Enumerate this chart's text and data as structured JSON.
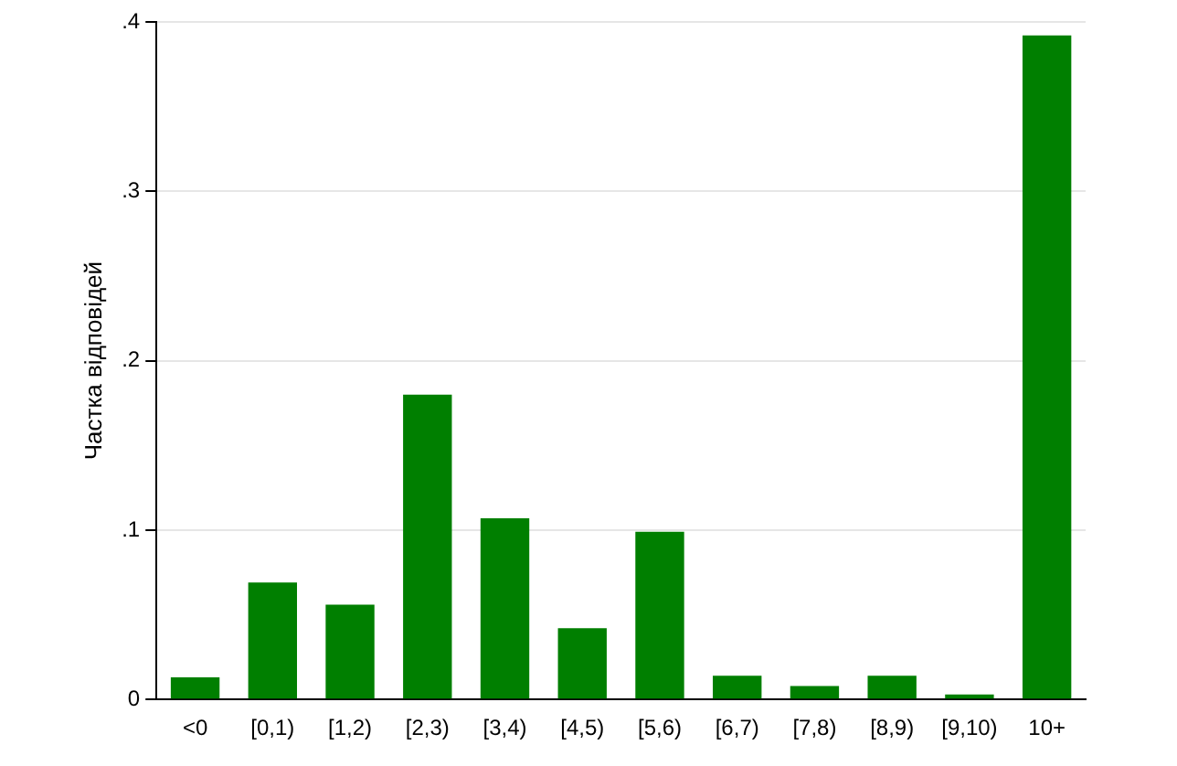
{
  "chart_data": {
    "type": "bar",
    "ylabel": "Частка відповідей",
    "categories": [
      "<0",
      "[0,1)",
      "[1,2)",
      "[2,3)",
      "[3,4)",
      "[4,5)",
      "[5,6)",
      "[6,7)",
      "[7,8)",
      "[8,9)",
      "[9,10)",
      "10+"
    ],
    "values": [
      0.013,
      0.069,
      0.056,
      0.18,
      0.107,
      0.042,
      0.099,
      0.014,
      0.008,
      0.014,
      0.003,
      0.392
    ],
    "color": "#007f00",
    "ylim": [
      0,
      0.4
    ],
    "yticks": [
      0,
      {
        "value": 0.1,
        "label": ".1"
      },
      {
        "value": 0.2,
        "label": ".2"
      },
      {
        "value": 0.3,
        "label": ".3"
      },
      {
        "value": 0.4,
        "label": ".4"
      }
    ],
    "grid": "y"
  }
}
